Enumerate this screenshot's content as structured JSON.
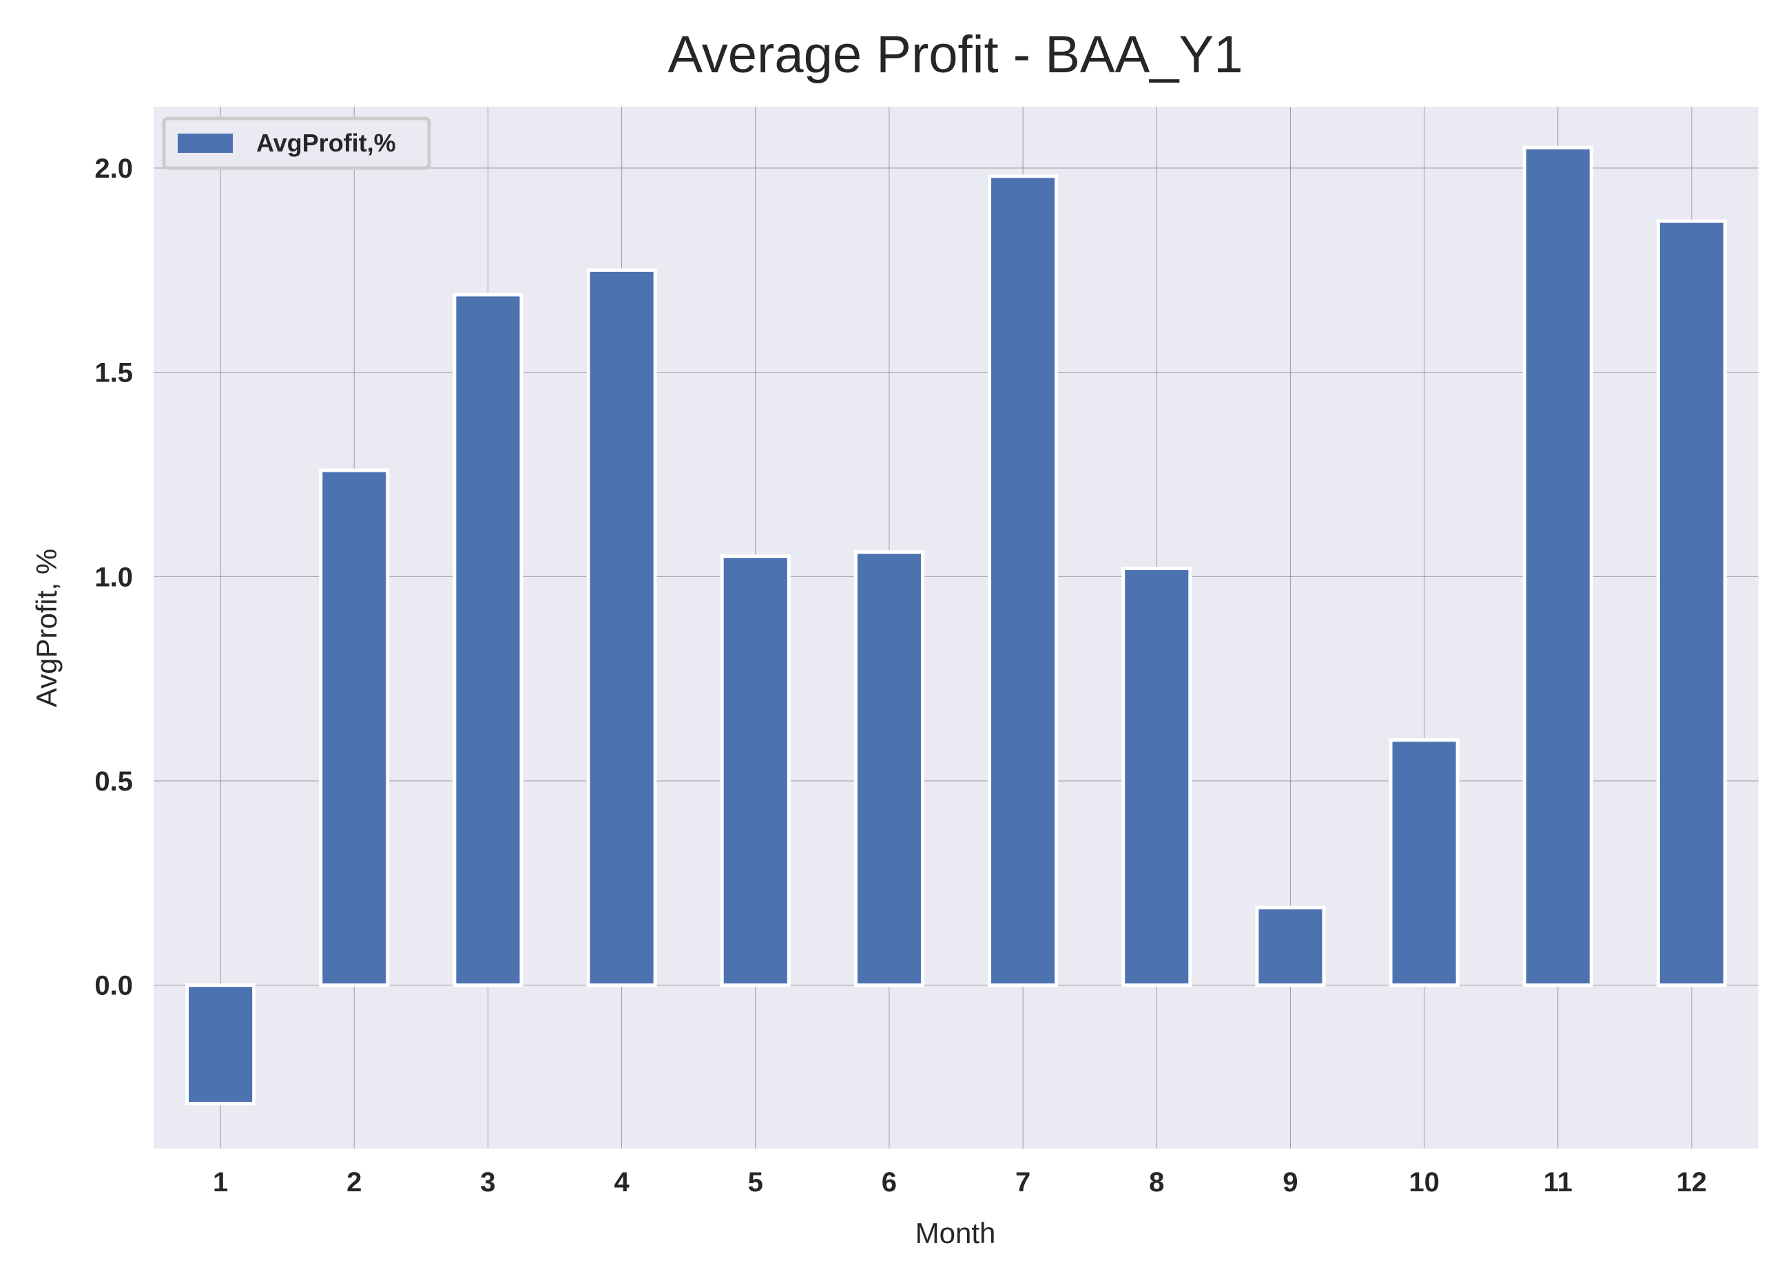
{
  "chart_data": {
    "type": "bar",
    "title": "Average Profit - BAA_Y1",
    "xlabel": "Month",
    "ylabel": "AvgProfit, %",
    "categories": [
      "1",
      "2",
      "3",
      "4",
      "5",
      "6",
      "7",
      "8",
      "9",
      "10",
      "11",
      "12"
    ],
    "series": [
      {
        "name": "AvgProfit,%",
        "color": "#4c72b0",
        "values": [
          -0.29,
          1.26,
          1.69,
          1.75,
          1.05,
          1.06,
          1.98,
          1.02,
          0.19,
          0.6,
          2.05,
          1.87
        ]
      }
    ],
    "ylim": [
      -0.4,
      2.15
    ],
    "yticks": [
      0.0,
      0.5,
      1.0,
      1.5,
      2.0
    ],
    "ytick_labels": [
      "0.0",
      "0.5",
      "1.0",
      "1.5",
      "2.0"
    ],
    "grid": true,
    "legend_position": "top-left",
    "background_color": "#eaeaf2"
  }
}
